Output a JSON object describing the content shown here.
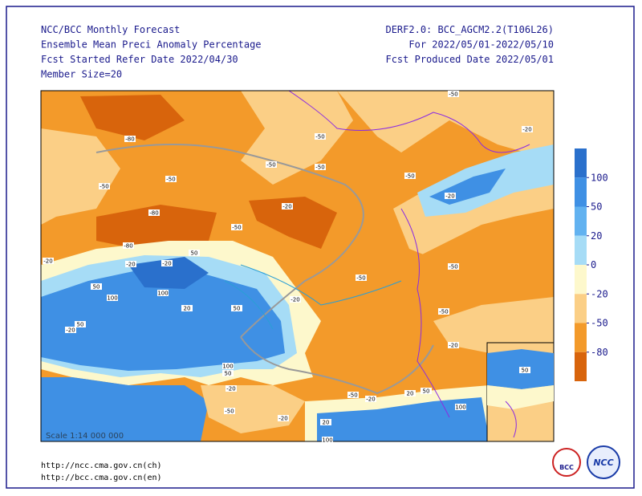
{
  "header": {
    "left": [
      "NCC/BCC Monthly Forecast",
      "Ensemble Mean Preci Anomaly Percentage",
      "Fcst Started Refer Date 2022/04/30",
      "Member Size=20"
    ],
    "right": [
      "DERF2.0: BCC_AGCM2.2(T106L26)",
      "For 2022/05/01-2022/05/10",
      "Fcst Produced Date 2022/05/01"
    ]
  },
  "colorbar": {
    "ticks": [
      100,
      50,
      20,
      0,
      -20,
      -50,
      -80
    ],
    "colors": [
      "#2a70cc",
      "#3f90e4",
      "#62b2f0",
      "#a6dcf6",
      "#fdf8cc",
      "#fbcf86",
      "#f39a2a",
      "#d8640c"
    ]
  },
  "map": {
    "scale": "Scale 1:14 000 000",
    "contour_labels": [
      "-50",
      "-20",
      "-80",
      "-50",
      "-50",
      "-50",
      "-50",
      "-50",
      "-50",
      "-20",
      "-80",
      "-20",
      "-50",
      "-80",
      "-20",
      "-20",
      "-20",
      "-50",
      "-50",
      "50",
      "50",
      "100",
      "100",
      "20",
      "50",
      "-20",
      "-50",
      "-20",
      "50",
      "-20",
      "100",
      "50",
      "-20",
      "-50",
      "-50",
      "-20",
      "20",
      "50",
      "100",
      "-20",
      "20",
      "100",
      "50"
    ]
  },
  "footer": [
    "http://ncc.cma.gov.cn(ch)",
    "http://bcc.cma.gov.cn(en)"
  ],
  "logos": [
    "BCC",
    "NCC"
  ]
}
